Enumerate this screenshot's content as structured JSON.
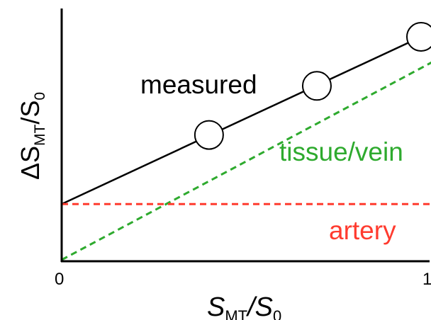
{
  "chart_data": {
    "type": "line",
    "xlim": [
      0,
      1
    ],
    "ylim": [
      0,
      1
    ],
    "x_ticks": [
      "0",
      "1"
    ],
    "xlabel": {
      "main": "S",
      "sub": "MT",
      "sep": "/S",
      "sub2": "0"
    },
    "ylabel": {
      "pre": "ΔS",
      "sub": "MT",
      "sep": "/S",
      "sub2": "0"
    },
    "series": [
      {
        "name": "measured",
        "style": "solid",
        "color": "#000000",
        "x": [
          0,
          1
        ],
        "y": [
          0.25,
          1.0
        ],
        "markers": {
          "x": [
            0.41,
            0.71,
            1.0
          ],
          "y": [
            0.56,
            0.78,
            1.0
          ]
        }
      },
      {
        "name": "tissue/vein",
        "style": "dashed",
        "color": "#2eaa2e",
        "x": [
          0,
          1
        ],
        "y": [
          0.0,
          0.86
        ]
      },
      {
        "name": "artery",
        "style": "dashed",
        "color": "#ff3b2f",
        "x": [
          0,
          1
        ],
        "y": [
          0.25,
          0.25
        ]
      }
    ]
  }
}
